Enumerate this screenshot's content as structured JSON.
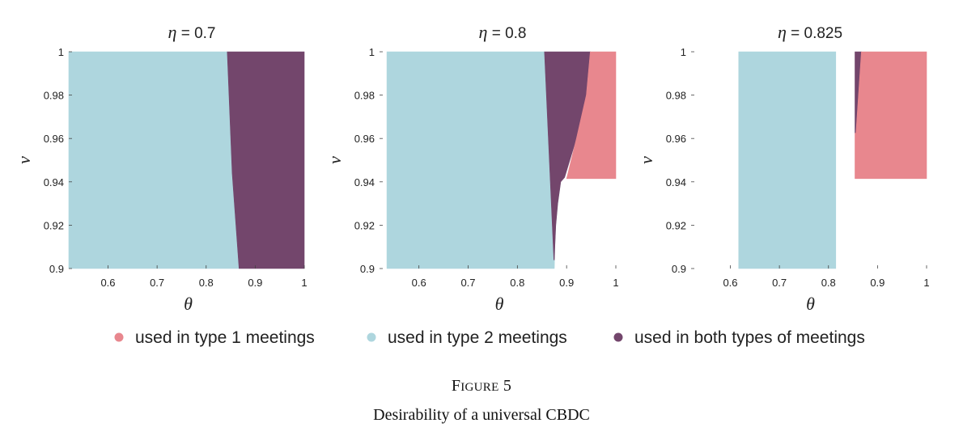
{
  "chart_data": [
    {
      "type": "area",
      "title": {
        "symbol": "η",
        "text": " = 0.7"
      },
      "xlabel": "θ",
      "ylabel": "ν",
      "xlim": [
        0.52,
        1.0
      ],
      "ylim": [
        0.9,
        1.0
      ],
      "xticks": [
        "0.6",
        "0.7",
        "0.8",
        "0.9",
        "1"
      ],
      "yticks": [
        "0.9",
        "0.92",
        "0.94",
        "0.96",
        "0.98",
        "1"
      ],
      "regions": [
        {
          "series": "type2",
          "points": [
            [
              0.52,
              0.9
            ],
            [
              0.867,
              0.9
            ],
            [
              0.853,
              0.944
            ],
            [
              0.843,
              1.0
            ],
            [
              0.52,
              1.0
            ]
          ]
        },
        {
          "series": "both",
          "points": [
            [
              0.843,
              1.0
            ],
            [
              1.0,
              1.0
            ],
            [
              1.0,
              0.9
            ],
            [
              0.867,
              0.9
            ],
            [
              0.853,
              0.944
            ]
          ]
        }
      ]
    },
    {
      "type": "area",
      "title": {
        "symbol": "η",
        "text": " = 0.8"
      },
      "xlabel": "θ",
      "ylabel": "ν",
      "xlim": [
        0.52,
        1.0
      ],
      "ylim": [
        0.9,
        1.0
      ],
      "xticks": [
        "0.6",
        "0.7",
        "0.8",
        "0.9",
        "1"
      ],
      "yticks": [
        "0.9",
        "0.92",
        "0.94",
        "0.96",
        "0.98",
        "1"
      ],
      "regions": [
        {
          "series": "type2",
          "points": [
            [
              0.535,
              0.9
            ],
            [
              0.875,
              0.9
            ],
            [
              0.876,
              0.91
            ],
            [
              0.878,
              0.92
            ],
            [
              0.882,
              0.93
            ],
            [
              0.888,
              0.94
            ],
            [
              0.862,
              0.98
            ],
            [
              0.855,
              1.0
            ],
            [
              0.535,
              1.0
            ]
          ]
        },
        {
          "series": "both",
          "points": [
            [
              0.855,
              1.0
            ],
            [
              0.948,
              1.0
            ],
            [
              0.94,
              0.98
            ],
            [
              0.92,
              0.96
            ],
            [
              0.896,
              0.942
            ],
            [
              0.888,
              0.94
            ],
            [
              0.882,
              0.93
            ],
            [
              0.878,
              0.92
            ],
            [
              0.876,
              0.91
            ],
            [
              0.875,
              0.904
            ],
            [
              0.874,
              0.904
            ]
          ]
        },
        {
          "series": "type1",
          "points": [
            [
              0.948,
              1.0
            ],
            [
              1.0,
              1.0
            ],
            [
              1.0,
              0.9415
            ],
            [
              0.9,
              0.9415
            ],
            [
              0.92,
              0.96
            ],
            [
              0.94,
              0.98
            ]
          ]
        }
      ]
    },
    {
      "type": "area",
      "title": {
        "symbol": "η",
        "text": " = 0.825"
      },
      "xlabel": "θ",
      "ylabel": "ν",
      "xlim": [
        0.52,
        1.0
      ],
      "ylim": [
        0.9,
        1.0
      ],
      "xticks": [
        "0.6",
        "0.7",
        "0.8",
        "0.9",
        "1"
      ],
      "yticks": [
        "0.9",
        "0.92",
        "0.94",
        "0.96",
        "0.98",
        "1"
      ],
      "regions": [
        {
          "series": "type2",
          "points": [
            [
              0.617,
              0.9
            ],
            [
              0.815,
              0.9
            ],
            [
              0.815,
              1.0
            ],
            [
              0.617,
              1.0
            ]
          ]
        },
        {
          "series": "both",
          "points": [
            [
              0.854,
              1.0
            ],
            [
              0.867,
              1.0
            ],
            [
              0.856,
              0.9625
            ],
            [
              0.854,
              0.9625
            ]
          ]
        },
        {
          "series": "type1",
          "points": [
            [
              0.867,
              1.0
            ],
            [
              1.0,
              1.0
            ],
            [
              1.0,
              0.9415
            ],
            [
              0.854,
              0.9415
            ],
            [
              0.854,
              0.9625
            ],
            [
              0.856,
              0.9625
            ]
          ]
        }
      ]
    }
  ],
  "legend": [
    {
      "key": "type1",
      "label": "used in type 1 meetings",
      "color": "#E8878E"
    },
    {
      "key": "type2",
      "label": "used in type 2 meetings",
      "color": "#AED6DE"
    },
    {
      "key": "both",
      "label": "used in both types of meetings",
      "color": "#73466C"
    }
  ],
  "caption": {
    "label_first": "F",
    "label_rest": "IGURE",
    "label_num": " 5",
    "title": "Desirability of a universal CBDC"
  }
}
